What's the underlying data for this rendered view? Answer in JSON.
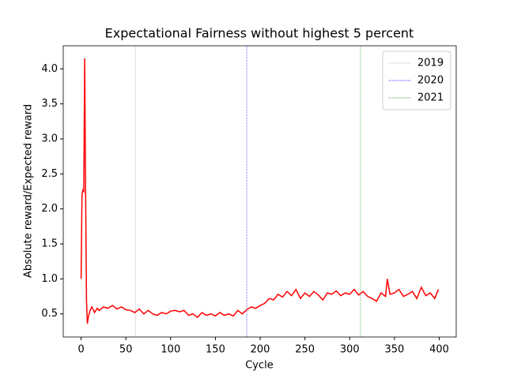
{
  "chart_data": {
    "type": "line",
    "title": "Expectational Fairness without highest 5 percent",
    "xlabel": "Cycle",
    "ylabel": "Absolute reward/Expected reward",
    "x": [
      0,
      1,
      2,
      3,
      4,
      5,
      6,
      7,
      8,
      10,
      12,
      15,
      18,
      20,
      25,
      30,
      35,
      40,
      45,
      50,
      55,
      60,
      65,
      70,
      75,
      80,
      85,
      90,
      95,
      100,
      105,
      110,
      115,
      120,
      125,
      130,
      135,
      140,
      145,
      150,
      155,
      160,
      165,
      170,
      175,
      180,
      185,
      190,
      195,
      200,
      205,
      210,
      215,
      220,
      225,
      230,
      235,
      240,
      245,
      250,
      255,
      260,
      265,
      270,
      275,
      280,
      285,
      290,
      295,
      300,
      305,
      310,
      315,
      320,
      325,
      330,
      335,
      340,
      342,
      345,
      350,
      355,
      360,
      365,
      370,
      375,
      380,
      385,
      390,
      395,
      399
    ],
    "values": [
      1.0,
      2.2,
      2.27,
      2.25,
      4.15,
      2.3,
      0.7,
      0.36,
      0.45,
      0.55,
      0.6,
      0.52,
      0.58,
      0.55,
      0.6,
      0.58,
      0.62,
      0.57,
      0.6,
      0.56,
      0.55,
      0.52,
      0.57,
      0.5,
      0.55,
      0.5,
      0.48,
      0.52,
      0.5,
      0.54,
      0.55,
      0.53,
      0.55,
      0.48,
      0.5,
      0.45,
      0.52,
      0.48,
      0.5,
      0.47,
      0.52,
      0.48,
      0.5,
      0.47,
      0.55,
      0.5,
      0.56,
      0.6,
      0.58,
      0.62,
      0.65,
      0.72,
      0.7,
      0.78,
      0.74,
      0.82,
      0.76,
      0.85,
      0.72,
      0.8,
      0.75,
      0.82,
      0.77,
      0.7,
      0.8,
      0.78,
      0.83,
      0.76,
      0.8,
      0.78,
      0.85,
      0.77,
      0.82,
      0.75,
      0.72,
      0.68,
      0.8,
      0.75,
      1.0,
      0.78,
      0.8,
      0.85,
      0.75,
      0.78,
      0.82,
      0.72,
      0.88,
      0.76,
      0.8,
      0.72,
      0.85
    ],
    "color": "#ff0000",
    "vlines": [
      {
        "name": "2019",
        "x": 61,
        "color": "#9aa39a"
      },
      {
        "name": "2020",
        "x": 185,
        "color": "#0000ff"
      },
      {
        "name": "2021",
        "x": 312,
        "color": "#008000"
      }
    ],
    "legend": "upper right",
    "xlim": [
      -19.95,
      418.95
    ],
    "ylim": [
      0.17,
      4.33
    ],
    "xticks": [
      0,
      50,
      100,
      150,
      200,
      250,
      300,
      350,
      400
    ],
    "yticks": [
      0.5,
      {
        "value": 1,
        "label": "1.0"
      },
      1.5,
      {
        "value": 2,
        "label": "2.0"
      },
      2.5,
      {
        "value": 3,
        "label": "3.0"
      },
      3.5,
      {
        "value": 4,
        "label": "4.0"
      }
    ]
  }
}
